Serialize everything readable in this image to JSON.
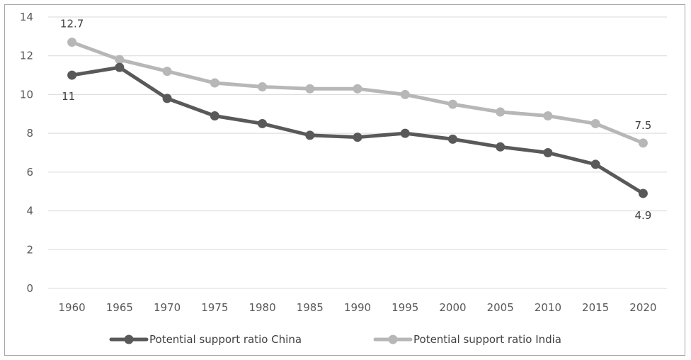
{
  "chart_data": {
    "type": "line",
    "title": "",
    "xlabel": "",
    "ylabel": "",
    "categories": [
      "1960",
      "1965",
      "1970",
      "1975",
      "1980",
      "1985",
      "1990",
      "1995",
      "2000",
      "2005",
      "2010",
      "2015",
      "2020"
    ],
    "ylim": [
      0,
      14
    ],
    "yticks": [
      "0",
      "2",
      "4",
      "6",
      "8",
      "10",
      "12",
      "14"
    ],
    "grid": "horizontal",
    "legend": "bottom",
    "series": [
      {
        "name": "Potential support ratio China",
        "color": "#595959",
        "values": [
          11,
          11.4,
          9.8,
          8.9,
          8.5,
          7.9,
          7.8,
          8.0,
          7.7,
          7.3,
          7.0,
          6.4,
          4.9
        ],
        "labels": {
          "0": "11",
          "12": "4.9"
        }
      },
      {
        "name": "Potential support ratio India",
        "color": "#b7b7b7",
        "values": [
          12.7,
          11.8,
          11.2,
          10.6,
          10.4,
          10.3,
          10.3,
          10.0,
          9.5,
          9.1,
          8.9,
          8.5,
          7.5
        ],
        "labels": {
          "0": "12.7",
          "12": "7.5"
        }
      }
    ]
  }
}
